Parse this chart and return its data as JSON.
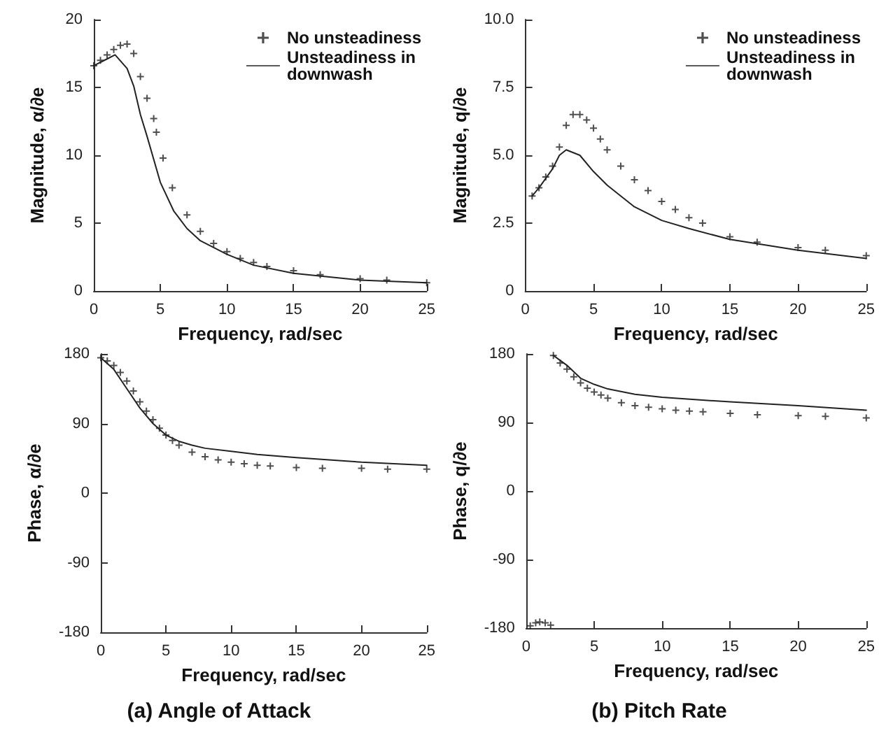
{
  "chart_data": [
    {
      "type": "line",
      "xlabel": "Frequency, rad/sec",
      "ylabel": "Magnitude, α/∂e",
      "xlim": [
        0,
        25
      ],
      "ylim": [
        0,
        20
      ],
      "xticks": [
        0,
        5,
        10,
        15,
        20,
        25
      ],
      "yticks": [
        0,
        5,
        10,
        15,
        20
      ],
      "legend": "top right",
      "grid": false,
      "series": [
        {
          "name": "No unsteadiness",
          "type": "scatter",
          "marker": "cross",
          "color": "#222222",
          "x": [
            0,
            0.5,
            1,
            1.5,
            2,
            2.5,
            3,
            3.5,
            4,
            4.5,
            4.7,
            5.2,
            5.9,
            7,
            8,
            9,
            10,
            11,
            12,
            13,
            15,
            17,
            20,
            22,
            25
          ],
          "values": [
            16.6,
            17,
            17.4,
            17.8,
            18.1,
            18.2,
            17.5,
            15.8,
            14.2,
            12.7,
            11.7,
            9.8,
            7.6,
            5.6,
            4.4,
            3.5,
            2.9,
            2.4,
            2.1,
            1.8,
            1.5,
            1.2,
            0.9,
            0.8,
            0.6
          ]
        },
        {
          "name": "Unsteadiness in downwash",
          "color": "#222222",
          "x": [
            0,
            1,
            1.6,
            2.5,
            3,
            3.5,
            4,
            5,
            6,
            7,
            8,
            10,
            12,
            15,
            20,
            25
          ],
          "values": [
            16.6,
            17.1,
            17.4,
            16.4,
            15.1,
            13,
            11.4,
            8,
            5.9,
            4.6,
            3.7,
            2.7,
            1.9,
            1.3,
            0.8,
            0.6
          ]
        }
      ]
    },
    {
      "type": "line",
      "xlabel": "Frequency, rad/sec",
      "ylabel": "Magnitude, q/∂e",
      "xlim": [
        0,
        25
      ],
      "ylim": [
        0,
        10
      ],
      "xticks": [
        0,
        5,
        10,
        15,
        20,
        25
      ],
      "yticks": [
        0,
        2.5,
        {
          "value": 5,
          "label": "5.0"
        },
        {
          "value": 7.5,
          "label": "7.5"
        },
        {
          "value": 10,
          "label": "10.0"
        }
      ],
      "legend": "top right",
      "grid": false,
      "series": [
        {
          "name": "No unsteadiness",
          "type": "scatter",
          "marker": "cross",
          "color": "#222222",
          "x": [
            0.5,
            1,
            1.5,
            2,
            2.5,
            3,
            3.5,
            4,
            4.5,
            5,
            5.5,
            6,
            7,
            8,
            9,
            10,
            11,
            12,
            13,
            15,
            17,
            20,
            22,
            25
          ],
          "values": [
            3.5,
            3.8,
            4.2,
            4.6,
            5.3,
            6.1,
            6.5,
            6.5,
            6.3,
            6,
            5.6,
            5.2,
            4.6,
            4.1,
            3.7,
            3.3,
            3,
            2.7,
            2.5,
            2,
            1.8,
            1.6,
            1.5,
            1.3
          ]
        },
        {
          "name": "Unsteadiness in downwash",
          "color": "#222222",
          "x": [
            0.5,
            1,
            2,
            2.5,
            3,
            4,
            5,
            6,
            7,
            8,
            10,
            12,
            15,
            20,
            25
          ],
          "values": [
            3.5,
            3.8,
            4.5,
            5,
            5.2,
            5,
            4.4,
            3.9,
            3.5,
            3.1,
            2.6,
            2.3,
            1.9,
            1.5,
            1.2
          ]
        }
      ]
    },
    {
      "type": "line",
      "xlabel": "Frequency, rad/sec",
      "ylabel": "Phase, α/∂e",
      "xlim": [
        0,
        25
      ],
      "ylim": [
        -180,
        180
      ],
      "xticks": [
        0,
        5,
        10,
        15,
        20,
        25
      ],
      "yticks": [
        -180,
        -90,
        0,
        90,
        180
      ],
      "grid": false,
      "annotations": [
        "(a) Angle of Attack"
      ],
      "series": [
        {
          "type": "scatter",
          "marker": "cross",
          "color": "#222222",
          "x": [
            0,
            0.5,
            1,
            1.5,
            2,
            2.5,
            3,
            3.5,
            4,
            4.5,
            5,
            5.5,
            6,
            7,
            8,
            9,
            10,
            11,
            12,
            13,
            15,
            17,
            20,
            22,
            25
          ],
          "values": [
            175,
            171,
            165,
            156,
            145,
            132,
            118,
            106,
            95,
            84,
            75,
            68,
            62,
            53,
            47,
            43,
            40,
            38,
            36,
            35,
            33,
            32,
            32,
            31,
            31
          ]
        },
        {
          "color": "#222222",
          "x": [
            0,
            1,
            2,
            3,
            4,
            5,
            6,
            7,
            8,
            10,
            12,
            15,
            20,
            25
          ],
          "values": [
            175,
            160,
            135,
            110,
            90,
            75,
            67,
            62,
            58,
            54,
            50,
            46,
            40,
            36
          ]
        }
      ]
    },
    {
      "type": "line",
      "xlabel": "Frequency, rad/sec",
      "ylabel": "Phase, q/∂e",
      "xlim": [
        0,
        25
      ],
      "ylim": [
        -180,
        180
      ],
      "xticks": [
        0,
        5,
        10,
        15,
        20,
        25
      ],
      "yticks": [
        -180,
        -90,
        0,
        90,
        180
      ],
      "grid": false,
      "annotations": [
        "(b) Pitch Rate"
      ],
      "series": [
        {
          "type": "scatter",
          "marker": "cross",
          "color": "#222222",
          "x": [
            0.3,
            0.7,
            1,
            1.4,
            1.8,
            2,
            2.5,
            3,
            3.5,
            4,
            4.5,
            5,
            5.5,
            6,
            7,
            8,
            9,
            10,
            11,
            12,
            13,
            15,
            17,
            20,
            22,
            25
          ],
          "values": [
            -177,
            -173,
            -172,
            -173,
            -176,
            178,
            168,
            160,
            150,
            142,
            135,
            130,
            126,
            122,
            116,
            112,
            110,
            108,
            106,
            105,
            104,
            102,
            100,
            99,
            98,
            96
          ]
        },
        {
          "color": "#222222",
          "x": [
            2,
            3,
            4,
            5,
            6,
            8,
            10,
            15,
            20,
            25
          ],
          "values": [
            178,
            165,
            148,
            140,
            134,
            127,
            123,
            117,
            112,
            106
          ]
        }
      ]
    }
  ]
}
